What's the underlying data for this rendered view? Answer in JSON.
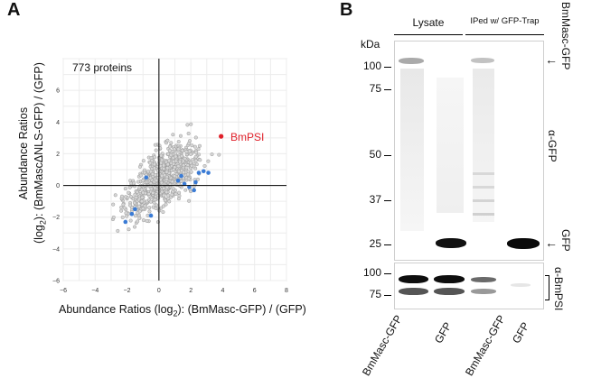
{
  "panelA": {
    "letter": "A",
    "protein_count": "773 proteins",
    "highlight_label": "BmPSI",
    "chart_data": {
      "type": "scatter",
      "title": "773 proteins",
      "xlabel": "Abundance Ratios (log2): (BmMasc-GFP) / (GFP)",
      "ylabel_line1": "Abundance Ratios",
      "ylabel_line2": "(log2): (BmMascΔNLS-GFP) / (GFP)",
      "xlim": [
        -6,
        8
      ],
      "ylim": [
        -6,
        8
      ],
      "xticks": [
        "−6",
        "−4",
        "−2",
        "0",
        "2",
        "4",
        "6",
        "8"
      ],
      "yticks": [
        "−6",
        "−4",
        "−2",
        "0",
        "2",
        "4",
        "6"
      ],
      "xtick_values": [
        -6,
        -4,
        -2,
        0,
        2,
        4,
        6,
        8
      ],
      "ytick_values": [
        -6,
        -4,
        -2,
        0,
        2,
        4,
        6
      ],
      "grid": true,
      "series": [
        {
          "name": "proteins",
          "color": "#b9b9b9",
          "n": 773
        },
        {
          "name": "highlighted",
          "color": "#3a7bd5",
          "x": [
            -0.8,
            -1.5,
            -1.7,
            -2.1,
            -0.5,
            1.2,
            1.4,
            1.6,
            2.2,
            2.5,
            2.8,
            3.1,
            2.3,
            1.9
          ],
          "y": [
            0.5,
            -1.5,
            -1.8,
            -2.3,
            -1.9,
            0.3,
            0.6,
            0.1,
            -0.3,
            0.8,
            0.9,
            0.8,
            0.2,
            -0.1
          ]
        },
        {
          "name": "BmPSI",
          "color": "#e0202a",
          "x": [
            3.9
          ],
          "y": [
            3.1
          ]
        }
      ]
    }
  },
  "panelB": {
    "letter": "B",
    "kda": "kDa",
    "group_lysate": "Lysate",
    "group_ip": "IPed w/ GFP-Trap",
    "markers_top": [
      "100",
      "75",
      "50",
      "37",
      "25"
    ],
    "markers_bottom": [
      "100",
      "75"
    ],
    "arrow_bmmasc": "BmMasc-GFP",
    "arrow_gfp": "GFP",
    "antibody_top": "α-GFP",
    "antibody_bottom": "α-BmPSI",
    "lanes": [
      "BmMasc-GFP",
      "GFP",
      "BmMasc-GFP",
      "GFP"
    ]
  }
}
